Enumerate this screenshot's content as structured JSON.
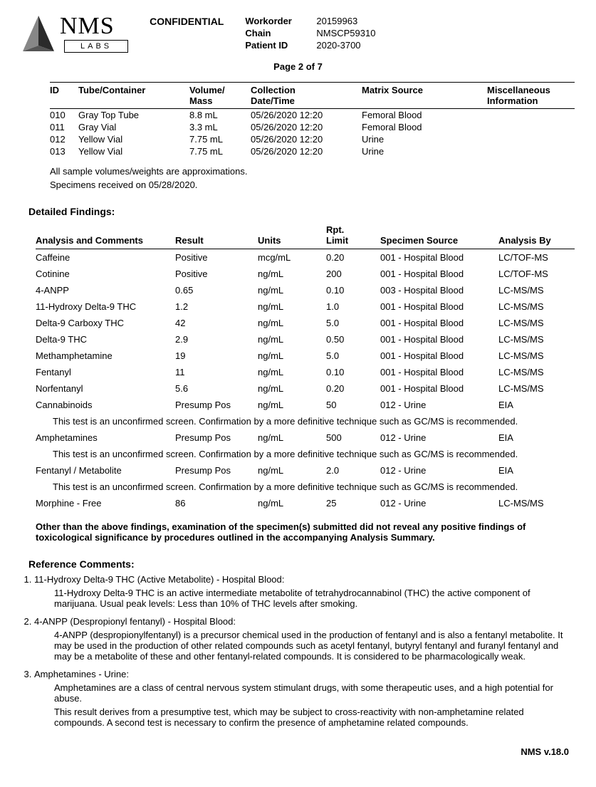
{
  "logo": {
    "name": "NMS",
    "sub": "LABS"
  },
  "confidential": "CONFIDENTIAL",
  "meta": {
    "workorder_label": "Workorder",
    "workorder": "20159963",
    "chain_label": "Chain",
    "chain": "NMSCP59310",
    "patient_label": "Patient ID",
    "patient": "2020-3700"
  },
  "page_line": "Page 2 of 7",
  "sample_headers": {
    "id": "ID",
    "tube": "Tube/Container",
    "vol": "Volume/\nMass",
    "dt": "Collection\nDate/Time",
    "src": "Matrix Source",
    "misc": "Miscellaneous\nInformation"
  },
  "samples": [
    {
      "id": "010",
      "tube": "Gray Top Tube",
      "vol": "8.8 mL",
      "dt": "05/26/2020 12:20",
      "src": "Femoral Blood"
    },
    {
      "id": "011",
      "tube": "Gray Vial",
      "vol": "3.3 mL",
      "dt": "05/26/2020 12:20",
      "src": "Femoral Blood"
    },
    {
      "id": "012",
      "tube": "Yellow Vial",
      "vol": "7.75 mL",
      "dt": "05/26/2020 12:20",
      "src": "Urine"
    },
    {
      "id": "013",
      "tube": "Yellow Vial",
      "vol": "7.75 mL",
      "dt": "05/26/2020 12:20",
      "src": "Urine"
    }
  ],
  "notes": {
    "approx": "All sample volumes/weights are approximations.",
    "received": "Specimens received on 05/28/2020."
  },
  "findings_title": "Detailed Findings:",
  "findings_headers": {
    "analysis": "Analysis and Comments",
    "result": "Result",
    "units": "Units",
    "rpt": "Rpt.\nLimit",
    "source": "Specimen Source",
    "by": "Analysis By"
  },
  "findings": [
    {
      "a": "Caffeine",
      "r": "Positive",
      "u": "mcg/mL",
      "l": "0.20",
      "s": "001 - Hospital Blood",
      "b": "LC/TOF-MS"
    },
    {
      "a": "Cotinine",
      "r": "Positive",
      "u": "ng/mL",
      "l": "200",
      "s": "001 - Hospital Blood",
      "b": "LC/TOF-MS"
    },
    {
      "a": "4-ANPP",
      "r": "0.65",
      "u": "ng/mL",
      "l": "0.10",
      "s": "003 - Hospital Blood",
      "b": "LC-MS/MS"
    },
    {
      "a": "11-Hydroxy Delta-9 THC",
      "r": "1.2",
      "u": "ng/mL",
      "l": "1.0",
      "s": "001 - Hospital Blood",
      "b": "LC-MS/MS"
    },
    {
      "a": "Delta-9 Carboxy THC",
      "r": "42",
      "u": "ng/mL",
      "l": "5.0",
      "s": "001 - Hospital Blood",
      "b": "LC-MS/MS"
    },
    {
      "a": "Delta-9 THC",
      "r": "2.9",
      "u": "ng/mL",
      "l": "0.50",
      "s": "001 - Hospital Blood",
      "b": "LC-MS/MS"
    },
    {
      "a": "Methamphetamine",
      "r": "19",
      "u": "ng/mL",
      "l": "5.0",
      "s": "001 - Hospital Blood",
      "b": "LC-MS/MS"
    },
    {
      "a": "Fentanyl",
      "r": "11",
      "u": "ng/mL",
      "l": "0.10",
      "s": "001 - Hospital Blood",
      "b": "LC-MS/MS"
    },
    {
      "a": "Norfentanyl",
      "r": "5.6",
      "u": "ng/mL",
      "l": "0.20",
      "s": "001 - Hospital Blood",
      "b": "LC-MS/MS"
    },
    {
      "a": "Cannabinoids",
      "r": "Presump Pos",
      "u": "ng/mL",
      "l": "50",
      "s": "012 - Urine",
      "b": "EIA",
      "note": "This test is an unconfirmed screen. Confirmation by a more definitive technique such as GC/MS is recommended."
    },
    {
      "a": "Amphetamines",
      "r": "Presump Pos",
      "u": "ng/mL",
      "l": "500",
      "s": "012 - Urine",
      "b": "EIA",
      "note": "This test is an unconfirmed screen. Confirmation by a more definitive technique such as GC/MS is recommended."
    },
    {
      "a": "Fentanyl / Metabolite",
      "r": "Presump Pos",
      "u": "ng/mL",
      "l": "2.0",
      "s": "012 - Urine",
      "b": "EIA",
      "note": "This test is an unconfirmed screen. Confirmation by a more definitive technique such as GC/MS is recommended."
    },
    {
      "a": "Morphine - Free",
      "r": "86",
      "u": "ng/mL",
      "l": "25",
      "s": "012 - Urine",
      "b": "LC-MS/MS"
    }
  ],
  "sig_note": "Other than the above findings, examination of the specimen(s) submitted did not reveal any positive findings of toxicological significance by procedures outlined in the accompanying Analysis Summary.",
  "ref_title": "Reference Comments:",
  "refs": [
    {
      "title": "11-Hydroxy Delta-9 THC (Active Metabolite) - Hospital Blood:",
      "body": [
        "11-Hydroxy Delta-9 THC is an active intermediate metabolite of tetrahydrocannabinol (THC) the active component of marijuana. Usual peak levels: Less than 10% of THC levels after smoking."
      ]
    },
    {
      "title": "4-ANPP (Despropionyl fentanyl) - Hospital Blood:",
      "body": [
        "4-ANPP (despropionylfentanyl) is a precursor chemical used in the production of fentanyl and is also a fentanyl metabolite.  It may be used in the production of other related compounds such as acetyl fentanyl, butyryl fentanyl and furanyl fentanyl and may be a metabolite of these  and other fentanyl-related compounds.  It is considered to be pharmacologically weak."
      ]
    },
    {
      "title": "Amphetamines - Urine:",
      "body": [
        "Amphetamines are a class of central nervous system stimulant drugs, with some therapeutic uses, and a high potential for abuse.",
        "This result derives from a presumptive test, which may be subject to cross-reactivity with non-amphetamine related compounds.  A second test is necessary to confirm the presence of amphetamine related compounds."
      ]
    }
  ],
  "footer": "NMS v.18.0"
}
